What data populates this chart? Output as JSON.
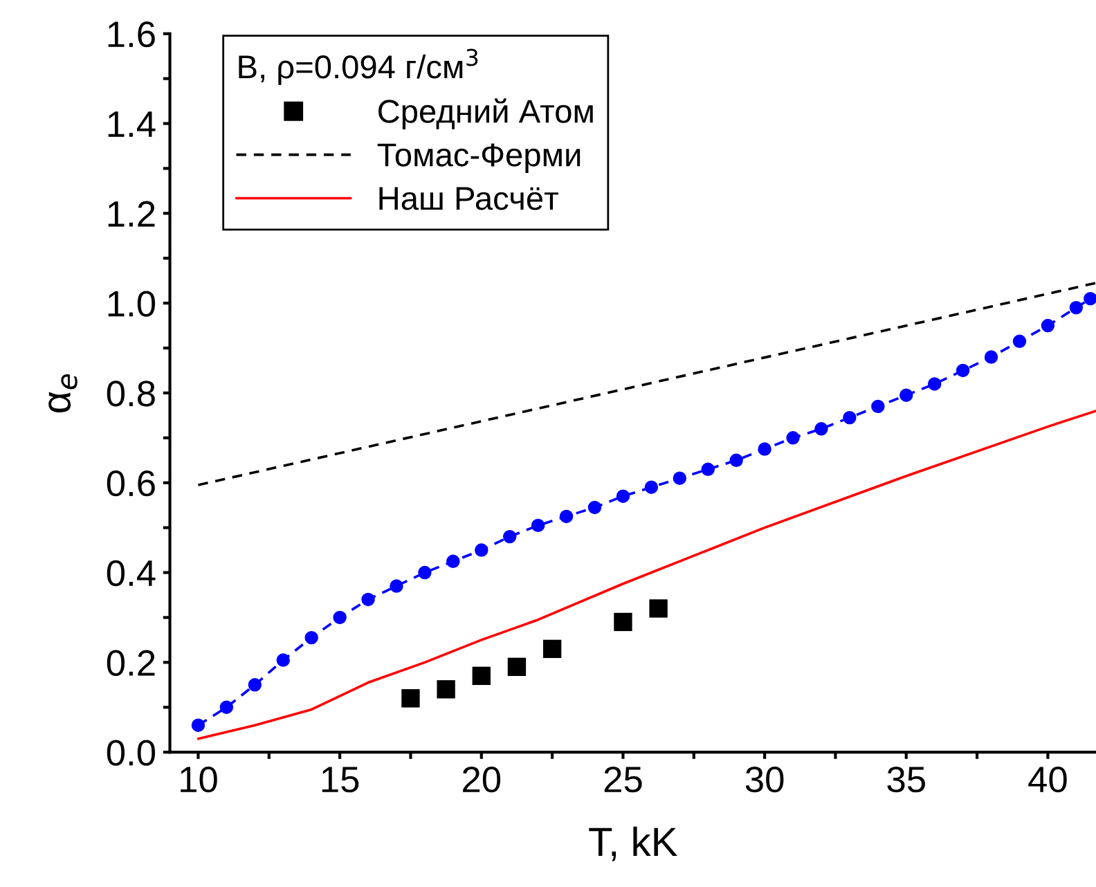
{
  "chart_data": {
    "type": "line",
    "xlabel": "T, kK",
    "ylabel": "α$_{e}$",
    "legend_title": "B, ρ=0.094 г/см$^{3}$",
    "legend": "top left",
    "grid": false,
    "xlim": [
      9,
      41.7
    ],
    "ylim": [
      0,
      1.6
    ],
    "xticks": [
      10,
      {
        "value": 12.5,
        "label": null
      },
      15,
      {
        "value": 17.5,
        "label": null
      },
      20,
      {
        "value": 22.5,
        "label": null
      },
      25,
      {
        "value": 27.5,
        "label": null
      },
      30,
      {
        "value": 32.5,
        "label": null
      },
      35,
      {
        "value": 37.5,
        "label": null
      },
      40
    ],
    "yticks": [
      {
        "value": 0,
        "label": "0.0"
      },
      {
        "value": 0.1,
        "label": null
      },
      0.2,
      {
        "value": 0.3,
        "label": null
      },
      0.4,
      {
        "value": 0.5,
        "label": null
      },
      0.6,
      {
        "value": 0.7,
        "label": null
      },
      0.8,
      {
        "value": 0.9,
        "label": null
      },
      {
        "value": 1.0,
        "label": "1.0"
      },
      {
        "value": 1.1,
        "label": null
      },
      1.2,
      {
        "value": 1.3,
        "label": null
      },
      1.4,
      {
        "value": 1.5,
        "label": null
      },
      1.6
    ],
    "series": [
      {
        "name": "Средний Атом",
        "type": "scatter",
        "marker": "square",
        "color": "#000000",
        "x": [
          17.5,
          18.75,
          20,
          21.25,
          22.5,
          25,
          26.25
        ],
        "values": [
          0.12,
          0.14,
          0.17,
          0.19,
          0.23,
          0.29,
          0.32
        ]
      },
      {
        "name": "Томас-Ферми",
        "line_style": "dashed",
        "marker": "none",
        "color": "#000000",
        "x": [
          10,
          41.7
        ],
        "values": [
          0.595,
          1.045
        ]
      },
      {
        "line_style": "dashed",
        "marker": "circle",
        "color": "#0000ff",
        "x": [
          10,
          11,
          12,
          13,
          14,
          15,
          16,
          17,
          18,
          19,
          20,
          21,
          22,
          23,
          24,
          25,
          26,
          27,
          28,
          29,
          30,
          31,
          32,
          33,
          34,
          35,
          36,
          37,
          38,
          39,
          40,
          41,
          41.5
        ],
        "values": [
          0.06,
          0.1,
          0.15,
          0.205,
          0.255,
          0.3,
          0.34,
          0.37,
          0.4,
          0.425,
          0.45,
          0.48,
          0.505,
          0.525,
          0.545,
          0.57,
          0.59,
          0.61,
          0.63,
          0.65,
          0.675,
          0.7,
          0.72,
          0.745,
          0.77,
          0.795,
          0.82,
          0.85,
          0.88,
          0.915,
          0.95,
          0.99,
          1.01
        ]
      },
      {
        "name": "Наш Расчёт",
        "line_style": "solid",
        "marker": "none",
        "color": "#ff0000",
        "x": [
          10,
          12,
          14,
          16,
          18,
          20,
          22,
          25,
          30,
          35,
          40,
          41.7
        ],
        "values": [
          0.03,
          0.06,
          0.095,
          0.155,
          0.2,
          0.25,
          0.295,
          0.375,
          0.5,
          0.615,
          0.725,
          0.76
        ]
      }
    ]
  }
}
